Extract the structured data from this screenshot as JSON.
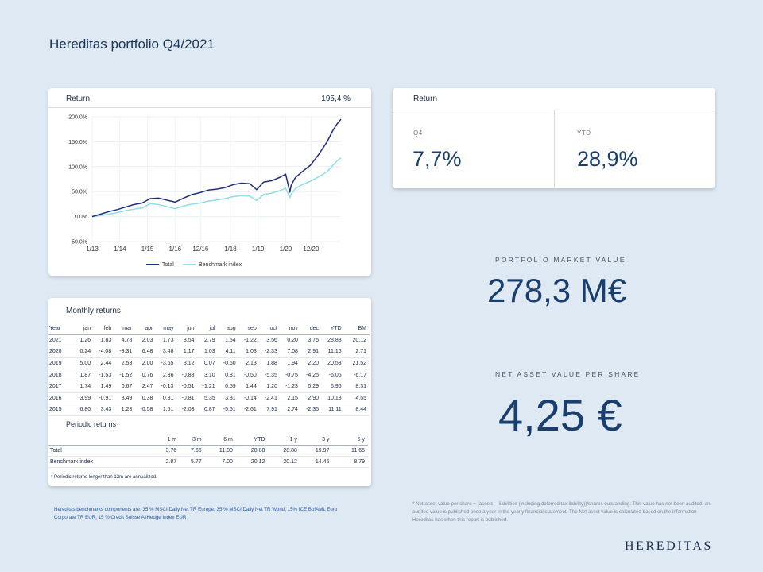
{
  "page": {
    "title": "Hereditas portfolio Q4/2021",
    "logo": "HEREDITAS",
    "footnote_left": "Hereditas benchmarks components are: 35 % MSCI Daily Net TR Europe, 35 % MSCI Daily Net TR World, 15% ICE BofAML Euro Corporate TR EUR, 15 % Credit Suisse AllHedge Index EUR",
    "footnote_right": "* Net asset value per share = (assets – liabilities (including deferred tax liability))/shares outstanding. This value has not been audited; an audited value is published once a year in the yearly financial statement. The Net asset value is calculated based on the information Hereditas has when this report is published."
  },
  "chart_card": {
    "label": "Return",
    "total_return": "195,4 %"
  },
  "chart_data": {
    "type": "line",
    "title": "Return",
    "x": [
      "1/13",
      "1/14",
      "1/15",
      "1/16",
      "12/16",
      "1/18",
      "1/19",
      "1/20",
      "12/20"
    ],
    "x_positions": [
      2013.0,
      2014.0,
      2015.0,
      2016.0,
      2016.92,
      2018.0,
      2019.0,
      2020.0,
      2020.92
    ],
    "y_ticks": [
      "200.0%",
      "150.0%",
      "100.0%",
      "50.0%",
      "0.0%",
      "-50.0%"
    ],
    "y_tick_values": [
      200,
      150,
      100,
      50,
      0,
      -50
    ],
    "ylim": [
      -50,
      200
    ],
    "xlim": [
      2013.0,
      2022.0
    ],
    "series": [
      {
        "name": "Total",
        "color": "#1d2f7a",
        "x": [
          2013.0,
          2013.3,
          2013.6,
          2013.9,
          2014.2,
          2014.5,
          2014.8,
          2015.1,
          2015.4,
          2015.7,
          2016.0,
          2016.3,
          2016.6,
          2016.9,
          2017.2,
          2017.5,
          2017.8,
          2018.1,
          2018.4,
          2018.7,
          2018.95,
          2019.2,
          2019.5,
          2019.8,
          2020.0,
          2020.15,
          2020.2,
          2020.35,
          2020.6,
          2020.9,
          2021.2,
          2021.5,
          2021.7,
          2021.85,
          2022.0
        ],
        "y": [
          0,
          5,
          10,
          14,
          19,
          24,
          27,
          36,
          37,
          33,
          29,
          37,
          44,
          48,
          53,
          55,
          58,
          64,
          67,
          66,
          54,
          69,
          72,
          79,
          85,
          49,
          63,
          78,
          90,
          103,
          125,
          150,
          172,
          185,
          195
        ]
      },
      {
        "name": "Benchmark index",
        "color": "#8fdde6",
        "x": [
          2013.0,
          2013.3,
          2013.6,
          2013.9,
          2014.2,
          2014.5,
          2014.8,
          2015.1,
          2015.4,
          2015.7,
          2016.0,
          2016.3,
          2016.6,
          2016.9,
          2017.2,
          2017.5,
          2017.8,
          2018.1,
          2018.4,
          2018.7,
          2018.95,
          2019.2,
          2019.5,
          2019.8,
          2020.0,
          2020.15,
          2020.2,
          2020.35,
          2020.6,
          2020.9,
          2021.2,
          2021.5,
          2021.7,
          2021.85,
          2022.0
        ],
        "y": [
          0,
          2,
          5,
          8,
          12,
          15,
          17,
          26,
          24,
          20,
          16,
          21,
          25,
          27,
          31,
          33,
          36,
          40,
          42,
          41,
          32,
          44,
          47,
          52,
          57,
          38,
          45,
          56,
          64,
          71,
          80,
          90,
          102,
          111,
          118
        ]
      }
    ],
    "legend": [
      "Total",
      "Benchmark index"
    ],
    "legend_position": "bottom"
  },
  "return_card": {
    "label": "Return",
    "q4_label": "Q4",
    "q4_value": "7,7%",
    "ytd_label": "YTD",
    "ytd_value": "28,9%"
  },
  "market_value": {
    "label": "PORTFOLIO MARKET VALUE",
    "value": "278,3 M€"
  },
  "nav": {
    "label": "NET ASSET VALUE PER SHARE",
    "value": "4,25 €"
  },
  "monthly": {
    "label": "Monthly returns",
    "headers": [
      "Year",
      "jan",
      "feb",
      "mar",
      "apr",
      "may",
      "jun",
      "jul",
      "aug",
      "sep",
      "oct",
      "nov",
      "dec",
      "YTD",
      "BM"
    ],
    "rows": [
      [
        "2021",
        "1.26",
        "1.83",
        "4.78",
        "2.03",
        "1.73",
        "3.54",
        "2.79",
        "1.54",
        "-1.22",
        "3.56",
        "0.20",
        "3.76",
        "28.88",
        "20.12"
      ],
      [
        "2020",
        "0.24",
        "-4.08",
        "-9.31",
        "6.48",
        "3.48",
        "1.17",
        "1.03",
        "4.11",
        "1.03",
        "-2.33",
        "7.08",
        "2.91",
        "11.16",
        "2.71"
      ],
      [
        "2019",
        "5.00",
        "2.44",
        "2.53",
        "2.00",
        "-3.65",
        "3.12",
        "0.07",
        "-0.60",
        "2.13",
        "1.88",
        "1.94",
        "2.20",
        "20.53",
        "21.52"
      ],
      [
        "2018",
        "1.87",
        "-1.53",
        "-1.52",
        "0.76",
        "2.36",
        "-0.88",
        "3.10",
        "0.81",
        "-0.50",
        "-5.35",
        "-0.75",
        "-4.25",
        "-6.06",
        "-6.17"
      ],
      [
        "2017",
        "1.74",
        "1.49",
        "0.67",
        "2.47",
        "-0.13",
        "-0.51",
        "-1.21",
        "0.59",
        "1.44",
        "1.20",
        "-1.23",
        "0.29",
        "6.96",
        "8.31"
      ],
      [
        "2016",
        "-3.99",
        "-0.91",
        "3.49",
        "0.38",
        "0.81",
        "-0.81",
        "5.35",
        "3.31",
        "-0.14",
        "-2.41",
        "2.15",
        "2.90",
        "10.18",
        "4.55"
      ],
      [
        "2015",
        "6.80",
        "3.43",
        "1.23",
        "-0.58",
        "1.51",
        "-2.03",
        "0.87",
        "-5.51",
        "-2.61",
        "7.91",
        "2.74",
        "-2.35",
        "11.11",
        "8.44"
      ]
    ]
  },
  "periodic": {
    "label": "Periodic returns",
    "headers": [
      "",
      "1 m",
      "3 m",
      "6 m",
      "YTD",
      "1 y",
      "3 y",
      "5 y"
    ],
    "rows": [
      [
        "Total",
        "3.76",
        "7.66",
        "11.00",
        "28.88",
        "28.88",
        "19.97",
        "11.65"
      ],
      [
        "Benchmark index",
        "2.87",
        "5.77",
        "7.00",
        "20.12",
        "20.12",
        "14.45",
        "8.79"
      ]
    ],
    "note": "* Periodic returns longer than 12m are annualized."
  }
}
